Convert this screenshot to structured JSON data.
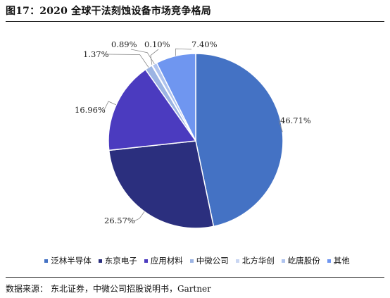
{
  "figure": {
    "title": "图17：2020 全球干法刻蚀设备市场竞争格局",
    "source_label": "数据来源：",
    "source_text": "东北证券，中微公司招股说明书，Gartner"
  },
  "chart_data": {
    "type": "pie",
    "start_angle_deg": 0,
    "direction": "clockwise",
    "slices": [
      {
        "name": "泛林半导体",
        "value": 46.71,
        "label": "46.71%",
        "color": "#4472C4"
      },
      {
        "name": "东京电子",
        "value": 26.57,
        "label": "26.57%",
        "color": "#2B2F7E"
      },
      {
        "name": "应用材料",
        "value": 16.96,
        "label": "16.96%",
        "color": "#4B3BBF"
      },
      {
        "name": "中微公司",
        "value": 1.37,
        "label": "1.37%",
        "color": "#9CB4E3"
      },
      {
        "name": "北方华创",
        "value": 0.1,
        "label": "0.10%",
        "color": "#C9D6F2"
      },
      {
        "name": "屹唐股份",
        "value": 0.89,
        "label": "0.89%",
        "color": "#AFC3EE"
      },
      {
        "name": "其他",
        "value": 7.4,
        "label": "7.40%",
        "color": "#6F96F0"
      }
    ],
    "legend_position": "bottom"
  }
}
